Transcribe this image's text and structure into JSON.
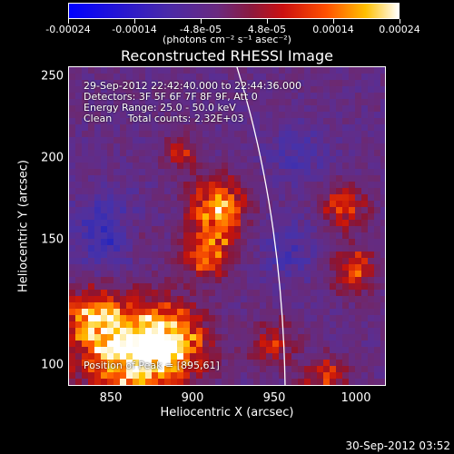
{
  "colorbar": {
    "tick_labels": [
      "-0.00024",
      "-0.00014",
      "-4.8e-05",
      "4.8e-05",
      "0.00014",
      "0.00024"
    ],
    "units": "(photons cm⁻² s⁻¹ asec⁻²)",
    "colors": [
      "#0000ff",
      "#5a2aa0",
      "#7a3a7a",
      "#9a2040",
      "#ff2000",
      "#ffaa00",
      "#ffffff"
    ]
  },
  "title": "Reconstructed RHESSI Image",
  "info": {
    "line1": "29-Sep-2012 22:42:40.000 to 22:44:36.000",
    "line2": "Detectors: 3F 5F 6F 7F 8F 9F, Att 0",
    "line3": "Energy Range: 25.0 - 50.0 keV",
    "line4": "Clean     Total counts: 2.32E+03",
    "peak": "Position of Peak = [895,61]"
  },
  "axes": {
    "xlabel": "Heliocentric X (arcsec)",
    "ylabel": "Heliocentric Y (arcsec)",
    "xticks": [
      "850",
      "900",
      "950",
      "1000"
    ],
    "yticks": [
      "100",
      "150",
      "200",
      "250"
    ],
    "xrange": [
      822,
      1016
    ],
    "yrange": [
      62,
      256
    ]
  },
  "footer": "30-Sep-2012 03:52"
}
